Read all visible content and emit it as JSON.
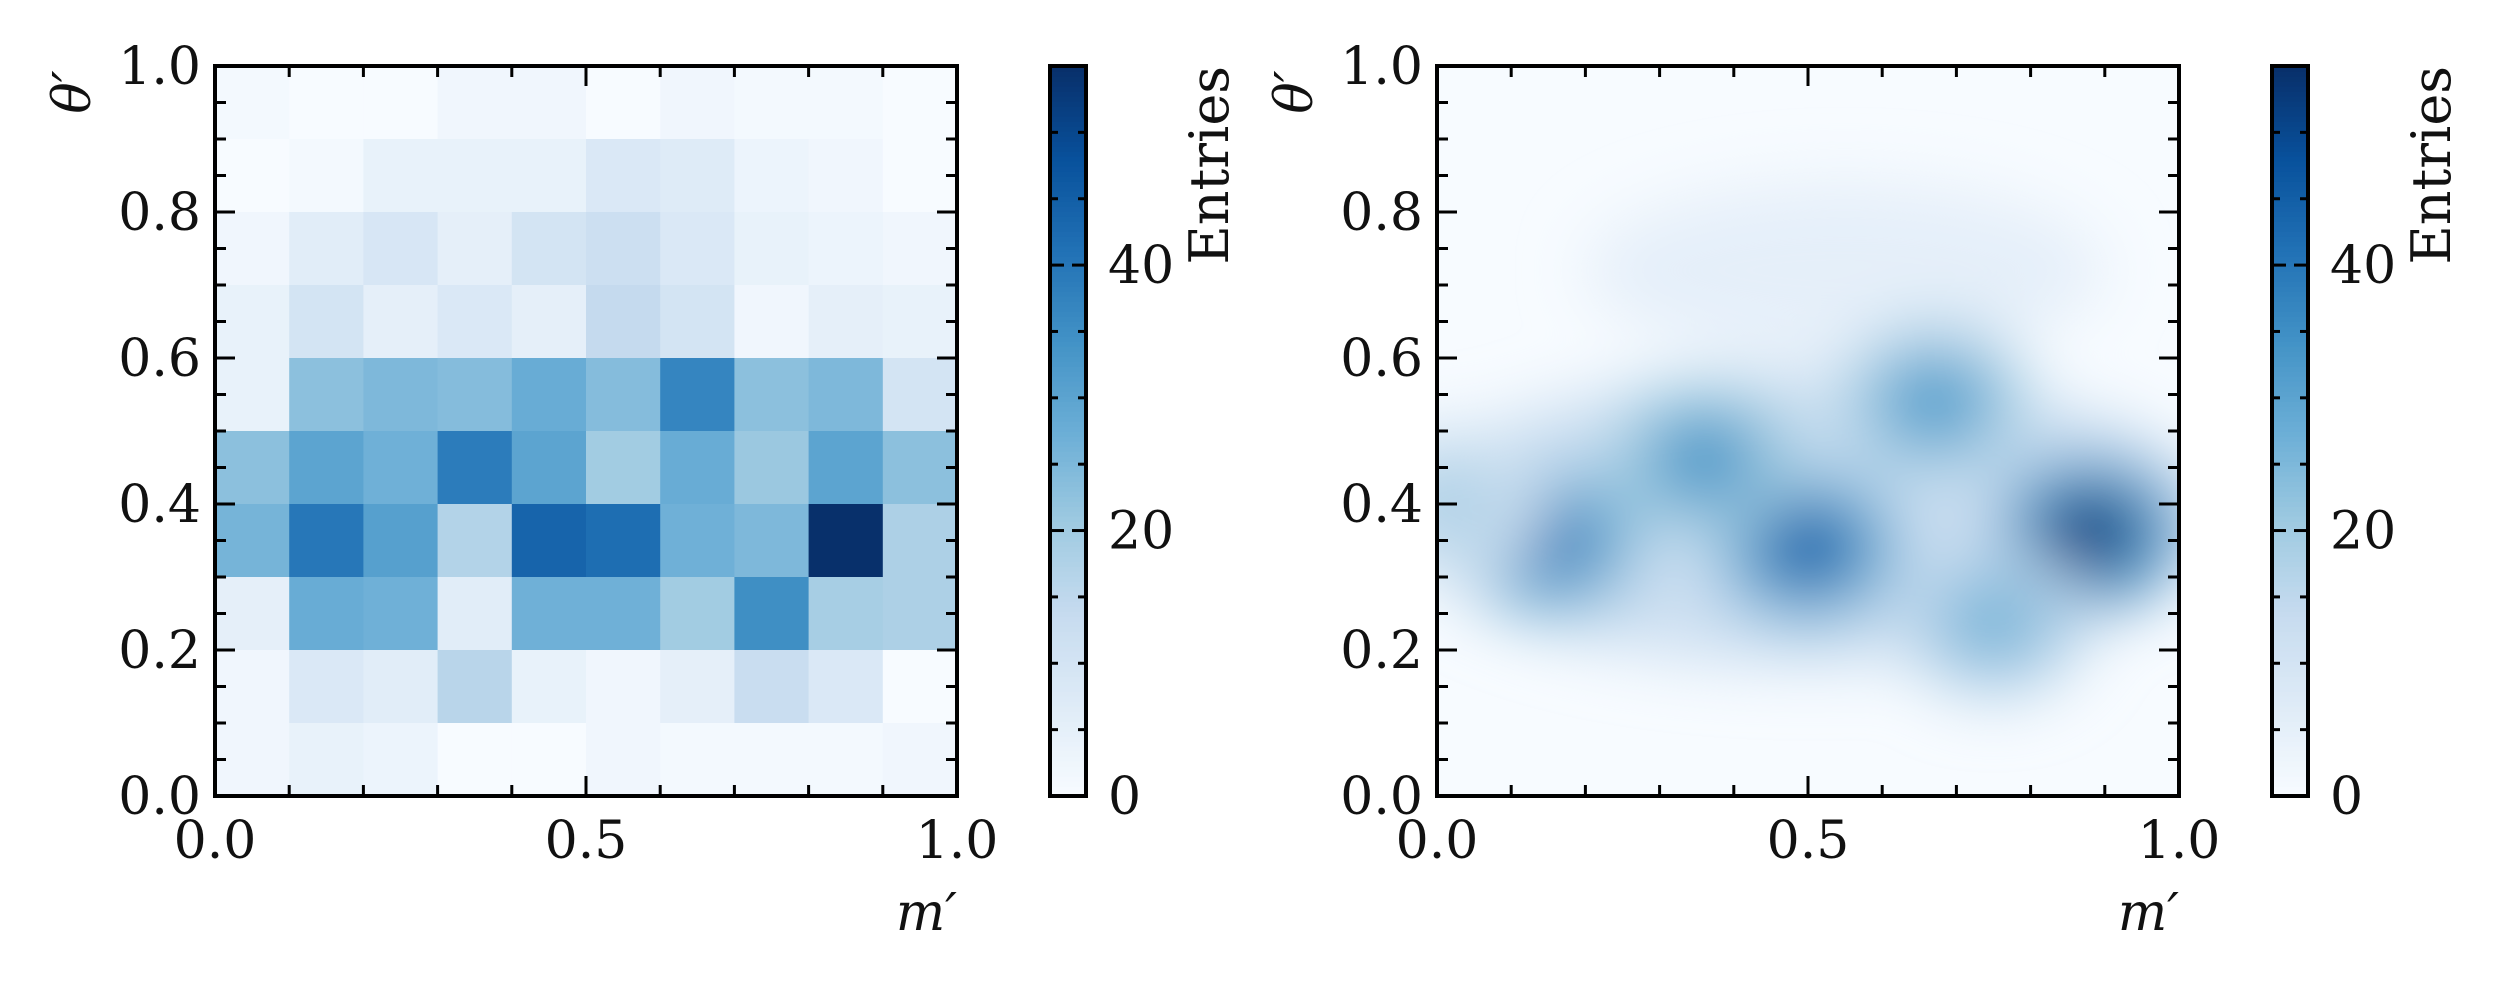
{
  "chart_data": [
    {
      "type": "heatmap",
      "style": "binned",
      "title": "",
      "xlabel": "m′",
      "ylabel": "θ′",
      "xlim": [
        0,
        1
      ],
      "ylim": [
        0,
        1
      ],
      "x_ticks": [
        "0.0",
        "0.5",
        "1.0"
      ],
      "y_ticks": [
        "0.0",
        "0.2",
        "0.4",
        "0.6",
        "0.8",
        "1.0"
      ],
      "x_bins": 10,
      "y_bins": 10,
      "rows_top_to_bottom": [
        [
          1,
          0,
          0,
          2,
          2,
          0,
          2,
          1,
          1,
          0
        ],
        [
          0,
          1,
          4,
          4,
          4,
          8,
          7,
          3,
          2,
          0
        ],
        [
          2,
          6,
          9,
          5,
          10,
          12,
          8,
          4,
          3,
          2
        ],
        [
          4,
          10,
          5,
          8,
          5,
          14,
          10,
          2,
          5,
          4
        ],
        [
          4,
          23,
          25,
          24,
          28,
          24,
          37,
          23,
          25,
          10
        ],
        [
          23,
          30,
          27,
          39,
          30,
          20,
          28,
          21,
          30,
          23
        ],
        [
          26,
          40,
          31,
          17,
          44,
          42,
          27,
          25,
          55,
          18
        ],
        [
          5,
          28,
          27,
          6,
          27,
          27,
          20,
          35,
          19,
          18
        ],
        [
          2,
          8,
          6,
          16,
          4,
          2,
          5,
          13,
          8,
          0
        ],
        [
          2,
          4,
          3,
          0,
          0,
          2,
          1,
          1,
          1,
          2
        ]
      ],
      "colorbar": {
        "label": "Entries",
        "min": 0,
        "max": 55,
        "ticks": [
          "0",
          "20",
          "40"
        ],
        "tick_values": [
          0,
          20,
          40
        ],
        "colormap": "Blues"
      },
      "colormap_stops": [
        "#f7fbff",
        "#deebf7",
        "#c6dbef",
        "#9ecae1",
        "#6baed6",
        "#4292c6",
        "#2171b5",
        "#08519c",
        "#08306b"
      ]
    },
    {
      "type": "heatmap",
      "style": "smoothed-kde",
      "title": "",
      "xlabel": "m′",
      "ylabel": "θ′",
      "xlim": [
        0,
        1
      ],
      "ylim": [
        0,
        1
      ],
      "x_ticks": [
        "0.0",
        "0.5",
        "1.0"
      ],
      "y_ticks": [
        "0.0",
        "0.2",
        "0.4",
        "0.6",
        "0.8",
        "1.0"
      ],
      "peaks": [
        {
          "x": 0.15,
          "y": 0.35,
          "value": 40
        },
        {
          "x": 0.5,
          "y": 0.34,
          "value": 44
        },
        {
          "x": 0.88,
          "y": 0.36,
          "value": 52
        },
        {
          "x": 0.36,
          "y": 0.46,
          "value": 34
        },
        {
          "x": 0.67,
          "y": 0.54,
          "value": 32
        },
        {
          "x": 0.75,
          "y": 0.24,
          "value": 26
        },
        {
          "x": 0.02,
          "y": 0.4,
          "value": 18
        }
      ],
      "colorbar": {
        "label": "Entries",
        "min": 0,
        "max": 55,
        "ticks": [
          "0",
          "20",
          "40"
        ],
        "tick_values": [
          0,
          20,
          40
        ],
        "colormap": "Blues"
      },
      "colormap_stops": [
        "#f7fbff",
        "#deebf7",
        "#c6dbef",
        "#9ecae1",
        "#6baed6",
        "#4292c6",
        "#2171b5",
        "#08519c",
        "#08306b"
      ]
    }
  ]
}
